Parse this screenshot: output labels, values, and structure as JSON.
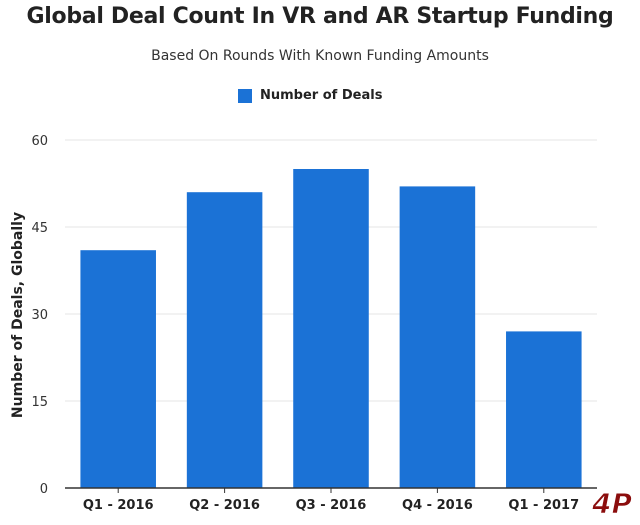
{
  "title": "Global Deal Count In VR and AR Startup Funding",
  "subtitle": "Based On Rounds With Known Funding Amounts",
  "colors": {
    "bar": "#1b72d6",
    "grid": "#e6e6e6",
    "axis": "#333333",
    "watermark": "#8b0d0d"
  },
  "watermark": {
    "text": "4P"
  },
  "chart_data": {
    "type": "bar",
    "title": "Global Deal Count In VR and AR Startup Funding",
    "subtitle": "Based On Rounds With Known Funding Amounts",
    "categories": [
      "Q1 - 2016",
      "Q2 - 2016",
      "Q3 - 2016",
      "Q4 - 2016",
      "Q1 - 2017"
    ],
    "series": [
      {
        "name": "Number of Deals",
        "values": [
          41,
          51,
          55,
          52,
          27
        ]
      }
    ],
    "xlabel": "",
    "ylabel": "Number of Deals, Globally",
    "ylim": [
      0,
      60
    ],
    "yticks": [
      "0",
      "15",
      "30",
      "45",
      "60"
    ],
    "grid": true,
    "legend": "top-center"
  }
}
